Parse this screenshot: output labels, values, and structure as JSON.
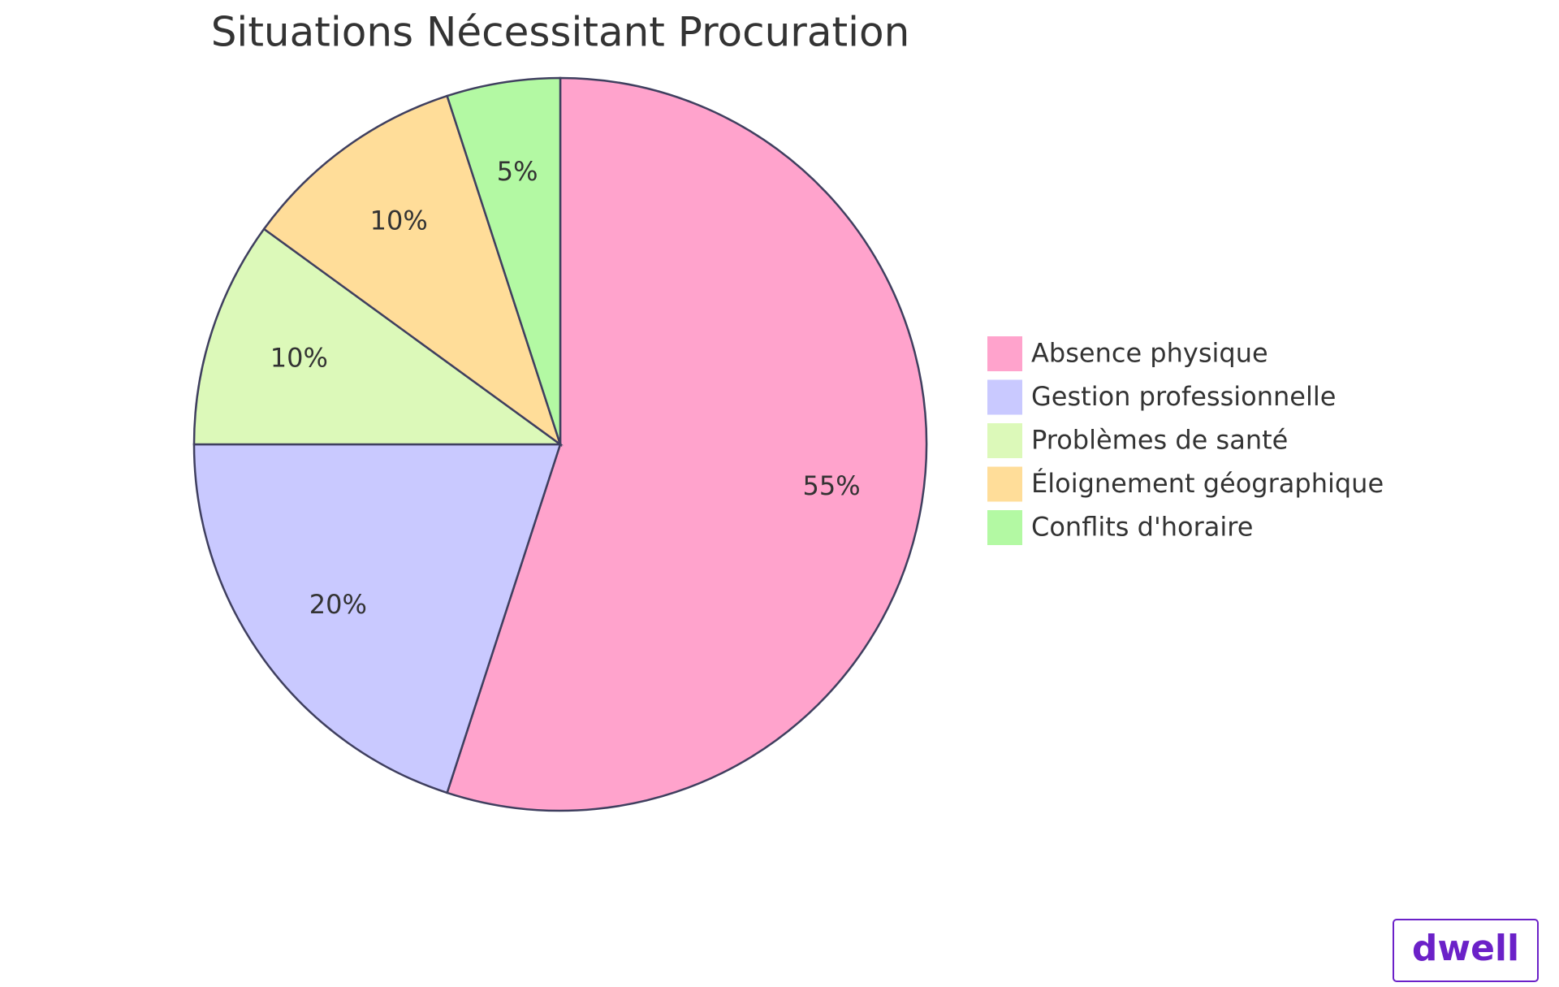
{
  "chart_data": {
    "type": "pie",
    "title": "Situations Nécessitant Procuration",
    "categories": [
      "Absence physique",
      "Gestion professionnelle",
      "Problèmes de santé",
      "Éloignement géographique",
      "Conflits d'horaire"
    ],
    "values": [
      55,
      20,
      10,
      10,
      5
    ],
    "value_labels": [
      "55%",
      "20%",
      "10%",
      "10%",
      "5%"
    ],
    "colors": [
      "#ffa3cc",
      "#c9c9ff",
      "#dcf9b9",
      "#ffdd99",
      "#b3f9a3"
    ],
    "legend": "right"
  },
  "logo": "dwell"
}
